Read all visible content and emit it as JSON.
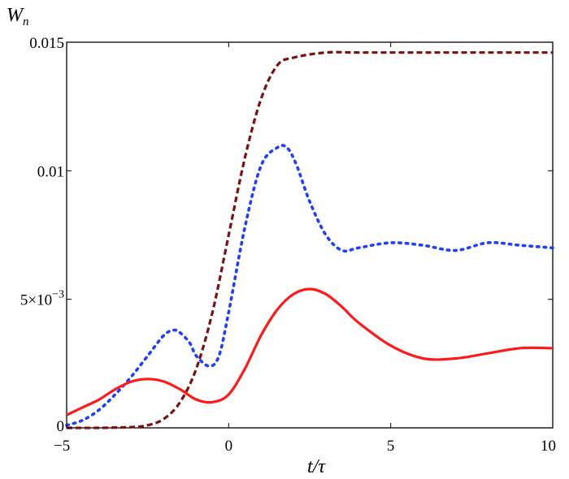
{
  "chart_data": {
    "type": "line",
    "ylabel": "W",
    "ylabel_sub": "n",
    "xlabel": "t/τ",
    "xlim": [
      -5,
      10
    ],
    "ylim": [
      0,
      0.015
    ],
    "grid": false,
    "x_ticks": [
      {
        "value": -5,
        "label": "−5"
      },
      {
        "value": 0,
        "label": "0"
      },
      {
        "value": 5,
        "label": "5"
      },
      {
        "value": 10,
        "label": "10"
      }
    ],
    "y_ticks": [
      {
        "value": 0,
        "label": "0"
      },
      {
        "value": 0.005,
        "label": "5×10",
        "exp": "−3"
      },
      {
        "value": 0.01,
        "label": "0.01"
      },
      {
        "value": 0.015,
        "label": "0.015"
      }
    ],
    "series": [
      {
        "style": "dashed",
        "color": "#7a1010",
        "x": [
          -5,
          -4,
          -3,
          -2.5,
          -2,
          -1.5,
          -1,
          -0.5,
          0,
          0.5,
          1,
          1.5,
          2,
          3,
          4,
          6,
          8,
          10
        ],
        "y": [
          0,
          0,
          3e-05,
          0.0001,
          0.00035,
          0.001,
          0.0023,
          0.0045,
          0.0075,
          0.0105,
          0.0128,
          0.0141,
          0.0144,
          0.0146,
          0.0146,
          0.0146,
          0.0146,
          0.0146
        ]
      },
      {
        "style": "dotted",
        "color": "#1f3fff",
        "x": [
          -5,
          -4.5,
          -4,
          -3.5,
          -3,
          -2.5,
          -2,
          -1.7,
          -1.5,
          -1.2,
          -1,
          -0.6,
          -0.3,
          0,
          0.5,
          1,
          1.5,
          1.8,
          2.1,
          2.5,
          3,
          3.5,
          4,
          5,
          6,
          7,
          8,
          9,
          10
        ],
        "y": [
          0.0001,
          0.0003,
          0.0007,
          0.0013,
          0.002,
          0.0028,
          0.0036,
          0.0038,
          0.0037,
          0.0033,
          0.0028,
          0.0024,
          0.0028,
          0.0045,
          0.0078,
          0.0102,
          0.0109,
          0.0109,
          0.0102,
          0.0088,
          0.0075,
          0.0069,
          0.007,
          0.0072,
          0.0071,
          0.0069,
          0.0072,
          0.0071,
          0.007
        ]
      },
      {
        "style": "solid",
        "color": "#ff1a1a",
        "x": [
          -5,
          -4.5,
          -4,
          -3.5,
          -3,
          -2.5,
          -2,
          -1.5,
          -1,
          -0.5,
          0,
          0.5,
          1,
          1.5,
          2,
          2.5,
          3,
          3.5,
          4,
          5,
          6,
          7,
          8,
          9,
          10
        ],
        "y": [
          0.0005,
          0.0008,
          0.0011,
          0.0015,
          0.0018,
          0.0019,
          0.0018,
          0.0015,
          0.0011,
          0.001,
          0.0013,
          0.0023,
          0.0036,
          0.0046,
          0.0052,
          0.0054,
          0.0052,
          0.0047,
          0.0041,
          0.0032,
          0.0027,
          0.0027,
          0.0029,
          0.0031,
          0.0031
        ]
      }
    ]
  }
}
